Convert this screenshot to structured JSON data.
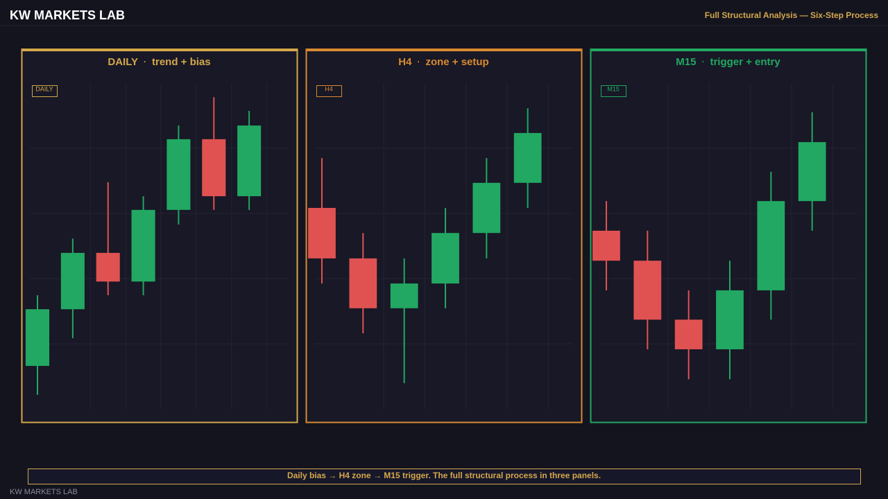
{
  "header": {
    "brand": "KW MARKETS LAB",
    "tagline": "Full Structural Analysis — Six-Step Process"
  },
  "chart_data": [
    {
      "type": "candlestick",
      "title": "DAILY",
      "separator": "·",
      "subtitle": "trend + bias",
      "badge": "DAILY",
      "color": "#d4a84b",
      "up_color": "#22a862",
      "down_color": "#e05252",
      "ylim": [
        0,
        100
      ],
      "grid": true,
      "open": [
        13.2,
        30.6,
        47.9,
        39.1,
        61.1,
        82.8,
        65.3
      ],
      "high": [
        34.9,
        52.3,
        69.6,
        65.3,
        87.0,
        95.7,
        91.5
      ],
      "low": [
        4.3,
        21.7,
        34.9,
        34.9,
        56.6,
        61.1,
        61.1
      ],
      "close": [
        30.6,
        47.9,
        39.1,
        61.1,
        82.8,
        65.3,
        87.0
      ]
    },
    {
      "type": "candlestick",
      "title": "H4",
      "separator": "·",
      "subtitle": "zone + setup",
      "badge": "H4",
      "color": "#d98a32",
      "up_color": "#22a862",
      "down_color": "#e05252",
      "ylim": [
        0,
        100
      ],
      "grid": true,
      "open": [
        61.7,
        46.2,
        30.9,
        38.5,
        54.0,
        69.4
      ],
      "high": [
        77.0,
        54.0,
        46.2,
        61.7,
        77.0,
        92.3
      ],
      "low": [
        38.5,
        23.2,
        7.9,
        30.9,
        46.2,
        61.7
      ],
      "close": [
        46.2,
        30.9,
        38.5,
        54.0,
        69.4,
        84.7
      ]
    },
    {
      "type": "candlestick",
      "title": "M15",
      "separator": "·",
      "subtitle": "trigger + entry",
      "badge": "M15",
      "color": "#22a862",
      "up_color": "#22a862",
      "down_color": "#e05252",
      "ylim": [
        0,
        100
      ],
      "grid": true,
      "open": [
        54.7,
        45.5,
        27.4,
        18.3,
        36.4,
        63.8
      ],
      "high": [
        63.8,
        54.7,
        36.4,
        45.5,
        72.8,
        91.1
      ],
      "low": [
        36.4,
        18.3,
        9.1,
        9.1,
        27.4,
        54.7
      ],
      "close": [
        45.5,
        27.4,
        18.3,
        36.4,
        63.8,
        81.9
      ]
    }
  ],
  "caption": "Daily bias → H4 zone → M15 trigger. The full structural process in three panels.",
  "footer": "KW MARKETS LAB"
}
